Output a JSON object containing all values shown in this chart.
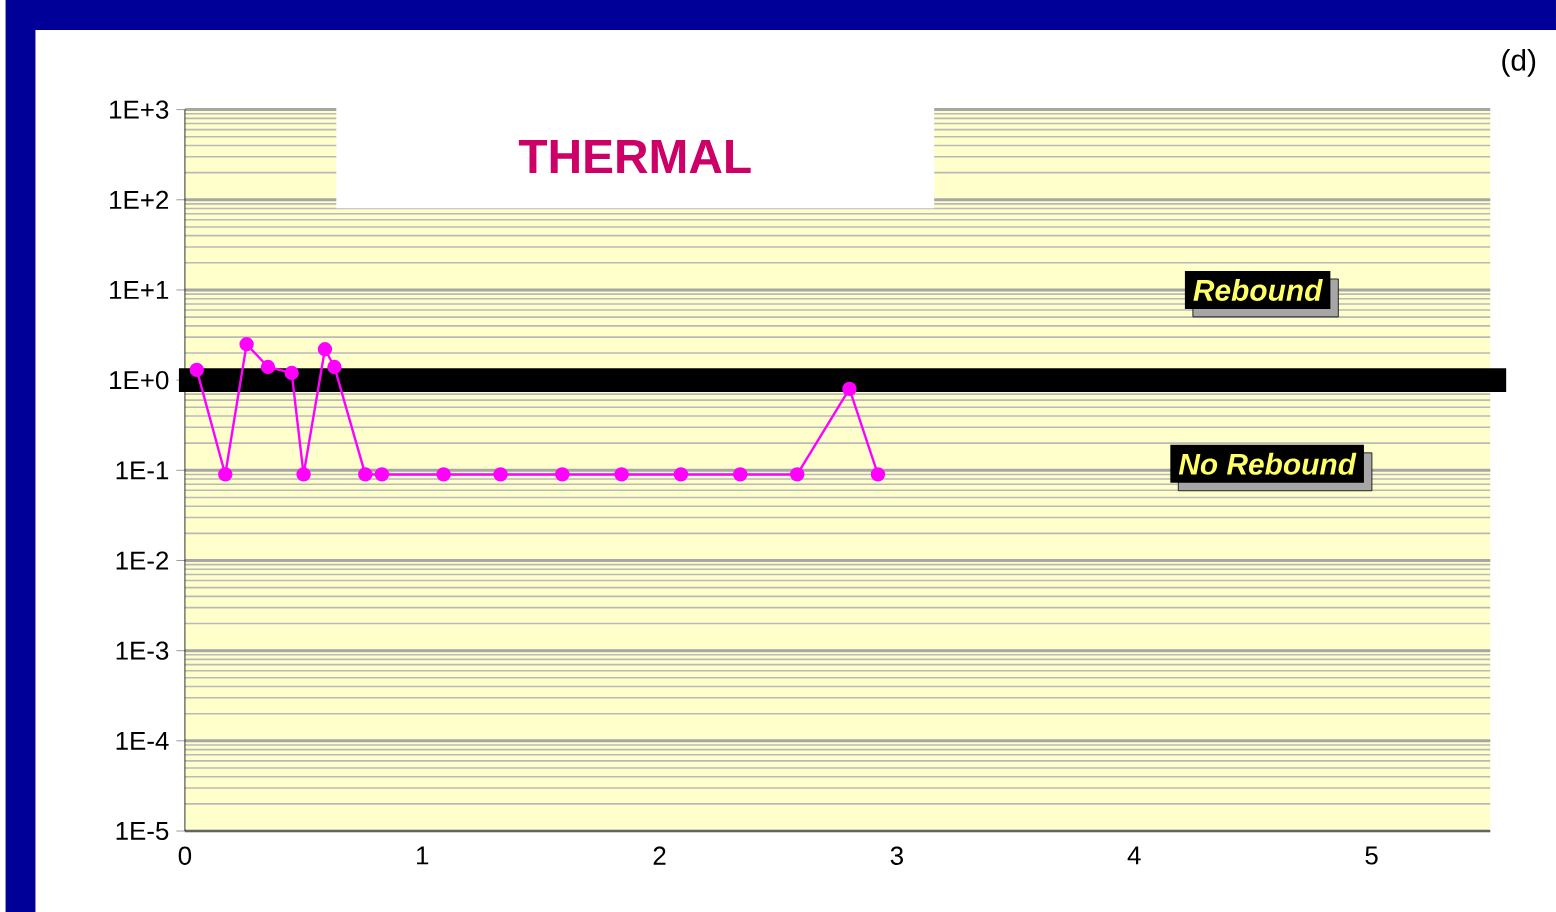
{
  "chart_data": {
    "type": "line",
    "title": "THERMAL",
    "x": [
      0.05,
      0.17,
      0.26,
      0.35,
      0.45,
      0.5,
      0.59,
      0.63,
      0.76,
      0.83,
      1.09,
      1.33,
      1.59,
      1.84,
      2.09,
      2.34,
      2.58,
      2.8,
      2.92
    ],
    "series": [
      {
        "color": "#ff00ff",
        "values": [
          1.3,
          0.09,
          2.5,
          1.4,
          1.2,
          0.09,
          2.2,
          1.4,
          0.09,
          0.09,
          0.09,
          0.09,
          0.09,
          0.09,
          0.09,
          0.09,
          0.09,
          0.8,
          0.09
        ]
      }
    ],
    "xlim": [
      0,
      5.5
    ],
    "xticks": [
      0,
      1,
      2,
      3,
      4,
      5
    ],
    "ylim": [
      1e-05,
      1000
    ],
    "yticks": [
      {
        "value": 1e-05,
        "label": "1E-5"
      },
      {
        "value": 0.0001,
        "label": "1E-4"
      },
      {
        "value": 0.001,
        "label": "1E-3"
      },
      {
        "value": 0.01,
        "label": "1E-2"
      },
      {
        "value": 0.1,
        "label": "1E-1"
      },
      {
        "value": 1,
        "label": "1E+0"
      },
      {
        "value": 10,
        "label": "1E+1"
      },
      {
        "value": 100,
        "label": "1E+2"
      },
      {
        "value": 1000,
        "label": "1E+3"
      }
    ],
    "log": "y",
    "grid": "y",
    "marker": "circle",
    "ref_lines": [
      {
        "axis": "y",
        "value": 1,
        "color": "#000000"
      }
    ],
    "annotations": [
      "(d)",
      "Rebound",
      "No Rebound"
    ]
  }
}
